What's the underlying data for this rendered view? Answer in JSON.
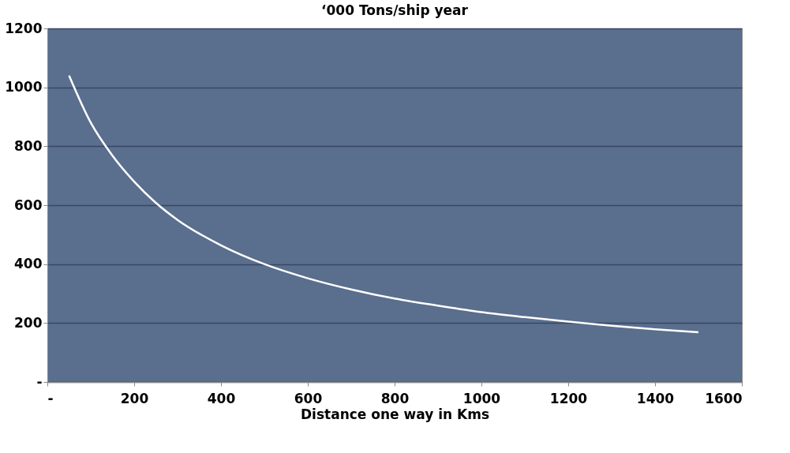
{
  "chart_data": {
    "type": "line",
    "title": "‘000 Tons/ship year",
    "xlabel": "Distance one way in Kms",
    "x": [
      50,
      100,
      150,
      200,
      250,
      300,
      400,
      500,
      600,
      700,
      800,
      900,
      1000,
      1100,
      1200,
      1300,
      1400,
      1500
    ],
    "series": [
      {
        "color": "#ffffff",
        "values": [
          1040,
          880,
          768,
          680,
          608,
          550,
          464,
          400,
          352,
          314,
          283,
          259,
          237,
          220,
          205,
          191,
          179,
          169
        ]
      }
    ],
    "xlim": [
      0,
      1600
    ],
    "xticks": [
      {
        "value": 0,
        "label": "-"
      },
      200,
      400,
      600,
      800,
      1000,
      1200,
      1400,
      1600
    ],
    "ylim": [
      0,
      1200
    ],
    "yticks": [
      {
        "value": 0,
        "label": "-"
      },
      200,
      400,
      600,
      800,
      1000,
      1200
    ],
    "grid": "y",
    "marker": "none",
    "line_style": "solid"
  }
}
